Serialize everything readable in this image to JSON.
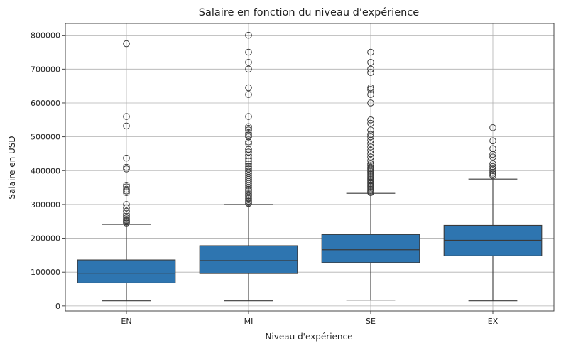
{
  "chart_data": {
    "type": "box",
    "title": "Salaire en fonction du niveau d'expérience",
    "xlabel": "Niveau d'expérience",
    "ylabel": "Salaire en USD",
    "categories": [
      "EN",
      "MI",
      "SE",
      "EX"
    ],
    "ylim": [
      -15000,
      835000
    ],
    "yticks": [
      0,
      100000,
      200000,
      300000,
      400000,
      500000,
      600000,
      700000,
      800000
    ],
    "grid": true,
    "box_color": "#2e75b0",
    "boxes": [
      {
        "category": "EN",
        "whisker_low": 15000,
        "q1": 68000,
        "median": 97000,
        "q3": 136000,
        "whisker_high": 241000,
        "outliers": [
          245000,
          248000,
          250000,
          253000,
          256000,
          260000,
          265000,
          270000,
          280000,
          290000,
          300000,
          335000,
          340000,
          345000,
          352000,
          357000,
          405000,
          410000,
          437000,
          532000,
          560000,
          775000
        ]
      },
      {
        "category": "MI",
        "whisker_low": 15000,
        "q1": 96000,
        "median": 134000,
        "q3": 178000,
        "whisker_high": 300000,
        "outliers": [
          303000,
          306000,
          310000,
          314000,
          318000,
          322000,
          326000,
          330000,
          335000,
          340000,
          345000,
          350000,
          356000,
          362000,
          368000,
          374000,
          380000,
          386000,
          392000,
          398000,
          405000,
          412000,
          420000,
          428000,
          436000,
          445000,
          455000,
          463000,
          480000,
          485000,
          500000,
          505000,
          510000,
          520000,
          525000,
          530000,
          560000,
          625000,
          645000,
          700000,
          720000,
          750000,
          800000
        ]
      },
      {
        "category": "SE",
        "whisker_low": 17000,
        "q1": 128000,
        "median": 166000,
        "q3": 211000,
        "whisker_high": 333000,
        "outliers": [
          335000,
          338000,
          342000,
          346000,
          350000,
          354000,
          358000,
          362000,
          366000,
          370000,
          374000,
          378000,
          382000,
          386000,
          390000,
          394000,
          398000,
          402000,
          406000,
          410000,
          415000,
          420000,
          430000,
          440000,
          450000,
          460000,
          470000,
          480000,
          490000,
          500000,
          507000,
          520000,
          540000,
          550000,
          600000,
          625000,
          640000,
          645000,
          690000,
          700000,
          720000,
          750000
        ]
      },
      {
        "category": "EX",
        "whisker_low": 15000,
        "q1": 148000,
        "median": 194000,
        "q3": 238000,
        "whisker_high": 375000,
        "outliers": [
          385000,
          390000,
          395000,
          400000,
          405000,
          412000,
          420000,
          440000,
          448000,
          465000,
          488000,
          527000
        ]
      }
    ]
  }
}
